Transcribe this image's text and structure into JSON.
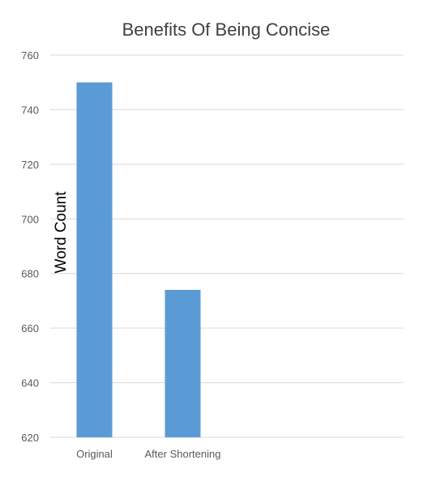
{
  "chart_data": {
    "type": "bar",
    "title": "Benefits Of Being Concise",
    "xlabel": "",
    "ylabel": "Word Count",
    "categories": [
      "Original",
      "After Shortening",
      "",
      ""
    ],
    "series": [
      {
        "values": [
          750,
          674,
          null,
          null
        ]
      }
    ],
    "ylim": [
      620,
      760
    ],
    "yticks": [
      620,
      640,
      660,
      680,
      700,
      720,
      740,
      760
    ],
    "grid": true,
    "legend": "none",
    "colors": {
      "bar": "#5B9BD5",
      "grid": "#D9D9D9",
      "text": "#595959",
      "title": "#404040",
      "ylabel": "#000000"
    }
  }
}
